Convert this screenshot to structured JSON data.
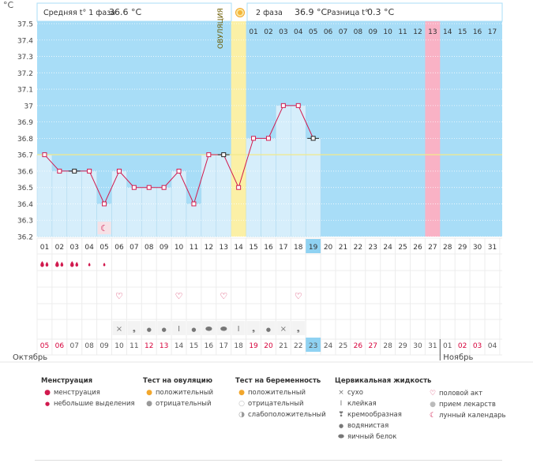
{
  "header": {
    "unit": "°C",
    "phase1_label": "Средняя t° 1 фаза",
    "phase1_value": "36.6 °C",
    "phase2_label": "2 фаза",
    "phase2_value": "36.9 °C",
    "diff_label": "Разница t°",
    "diff_value": "0.3 °C"
  },
  "ovulation_label": "ОВУЛЯЦИЯ",
  "y_ticks": [
    "37.5",
    "37.4",
    "37.3",
    "37.2",
    "37.1",
    "37",
    "36.9",
    "36.8",
    "36.7",
    "36.6",
    "36.5",
    "36.4",
    "36.3",
    "36.2"
  ],
  "cycle_days_after": [
    "01",
    "02",
    "03",
    "04",
    "05",
    "06",
    "07",
    "08",
    "09",
    "10",
    "11",
    "12",
    "13",
    "14",
    "15",
    "16",
    "17"
  ],
  "highlight_cycle_day": "13",
  "cycle_days_row": [
    "01",
    "02",
    "03",
    "04",
    "05",
    "06",
    "07",
    "08",
    "09",
    "10",
    "11",
    "12",
    "13",
    "14",
    "15",
    "16",
    "17",
    "18",
    "19",
    "20",
    "21",
    "22",
    "23",
    "24",
    "25",
    "26",
    "27",
    "28",
    "29",
    "30",
    "31"
  ],
  "highlight_cycle_row_day": "19",
  "cal_dates": [
    "05",
    "06",
    "07",
    "08",
    "09",
    "10",
    "11",
    "12",
    "13",
    "14",
    "15",
    "16",
    "17",
    "18",
    "19",
    "20",
    "21",
    "22",
    "23",
    "24",
    "25",
    "26",
    "27",
    "28",
    "29",
    "30",
    "31",
    "01",
    "02",
    "03",
    "04"
  ],
  "cal_date_colors": [
    "#d6003a",
    "#d6003a",
    "#555",
    "#555",
    "#555",
    "#555",
    "#555",
    "#d6003a",
    "#d6003a",
    "#555",
    "#555",
    "#555",
    "#555",
    "#555",
    "#d6003a",
    "#d6003a",
    "#555",
    "#555",
    "#555",
    "#555",
    "#555",
    "#d6003a",
    "#d6003a",
    "#555",
    "#555",
    "#555",
    "#555",
    "#555",
    "#d6003a",
    "#d6003a",
    "#555"
  ],
  "highlight_cal_date": "23",
  "month_left": "Октябрь",
  "month_right": "Ноябрь",
  "chart_data": {
    "type": "line",
    "x": [
      "01",
      "02",
      "03",
      "04",
      "05",
      "06",
      "07",
      "08",
      "09",
      "10",
      "11",
      "12",
      "13",
      "14",
      "15",
      "16",
      "17",
      "18",
      "19"
    ],
    "series": [
      {
        "values": [
          36.7,
          36.6,
          36.6,
          36.6,
          36.4,
          36.6,
          36.5,
          36.5,
          36.5,
          36.6,
          36.4,
          36.7,
          36.7,
          36.5,
          36.8,
          36.8,
          37.0,
          37.0,
          36.8
        ]
      }
    ],
    "ylim": [
      36.2,
      37.5
    ],
    "cover_line": 36.7,
    "ovulation_day": "14"
  },
  "menstruation_marks": [
    "heavy",
    "heavy",
    "heavy",
    "light",
    "light"
  ],
  "sex_days": [
    "06",
    "10",
    "13",
    "18"
  ],
  "mucus_marks": [
    "none",
    "none",
    "none",
    "none",
    "none",
    "dry",
    "creamy",
    "watery",
    "watery",
    "sticky",
    "watery",
    "eggwhite",
    "eggwhite",
    "sticky",
    "creamy",
    "watery",
    "dry",
    "creamy",
    "none"
  ],
  "legend": {
    "menstruation": {
      "title": "Менструация",
      "items": [
        "менструация",
        "небольшие выделения"
      ]
    },
    "ovulation_test": {
      "title": "Тест на овуляцию",
      "items": [
        "положительный",
        "отрицательный"
      ]
    },
    "pregnancy_test": {
      "title": "Тест на беременность",
      "items": [
        "положительный",
        "отрицательный",
        "слабоположительный"
      ]
    },
    "cervical": {
      "title": "Цервикальная жидкость",
      "items": [
        "сухо",
        "клейкая",
        "кремообразная",
        "водянистая",
        "яичный белок"
      ]
    },
    "other": {
      "items": [
        "половой акт",
        "прием лекарств",
        "лунный календарь"
      ]
    }
  },
  "colors": {
    "sky": "#a8ddf7",
    "bar": "#d6eefb",
    "line": "#d11a4e",
    "cover": "#f2e98a",
    "ovulation": "#fbf0a6",
    "pink_col": "#f9b2c5",
    "highlight": "#8fd2f2"
  }
}
